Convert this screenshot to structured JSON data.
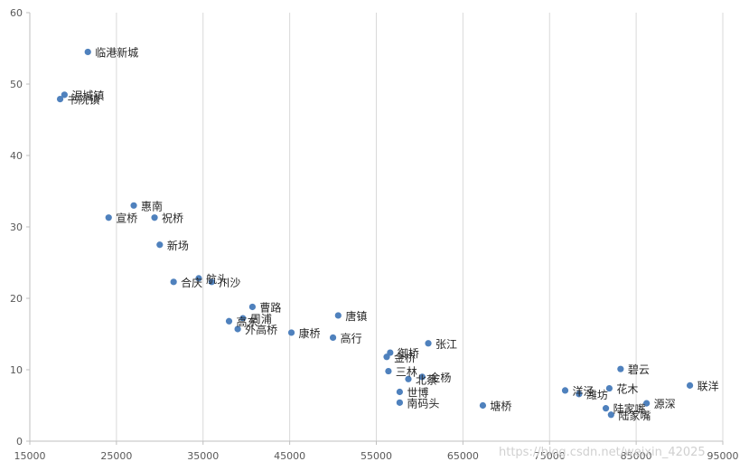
{
  "chart_data": {
    "type": "scatter",
    "title": "",
    "xlabel": "",
    "ylabel": "",
    "xlim": [
      15000,
      95000
    ],
    "ylim": [
      0,
      60
    ],
    "x_ticks": [
      15000,
      25000,
      35000,
      45000,
      55000,
      65000,
      75000,
      85000,
      95000
    ],
    "y_ticks": [
      0,
      10,
      20,
      30,
      40,
      50,
      60
    ],
    "grid": {
      "vertical": true,
      "horizontal": false
    },
    "legend": "none",
    "point_color": "#4f81bd",
    "points": [
      {
        "label": "临港新城",
        "x": 21700,
        "y": 54.5
      },
      {
        "label": "泥城镇",
        "x": 19000,
        "y": 48.5
      },
      {
        "label": "书院镇",
        "x": 18500,
        "y": 47.9
      },
      {
        "label": "惠南",
        "x": 27000,
        "y": 33.0
      },
      {
        "label": "宣桥",
        "x": 24100,
        "y": 31.3
      },
      {
        "label": "祝桥",
        "x": 29400,
        "y": 31.3
      },
      {
        "label": "新场",
        "x": 30000,
        "y": 27.5
      },
      {
        "label": "航头",
        "x": 34500,
        "y": 22.8
      },
      {
        "label": "合庆",
        "x": 31600,
        "y": 22.3
      },
      {
        "label": "川沙",
        "x": 36000,
        "y": 22.3
      },
      {
        "label": "曹路",
        "x": 40700,
        "y": 18.8
      },
      {
        "label": "唐镇",
        "x": 50600,
        "y": 17.6
      },
      {
        "label": "周浦",
        "x": 39600,
        "y": 17.2
      },
      {
        "label": "高东",
        "x": 38000,
        "y": 16.8
      },
      {
        "label": "外高桥",
        "x": 39000,
        "y": 15.7
      },
      {
        "label": "康桥",
        "x": 45200,
        "y": 15.2
      },
      {
        "label": "高行",
        "x": 50000,
        "y": 14.5
      },
      {
        "label": "张江",
        "x": 61000,
        "y": 13.7
      },
      {
        "label": "御桥",
        "x": 56600,
        "y": 12.4
      },
      {
        "label": "金桥",
        "x": 56200,
        "y": 11.8
      },
      {
        "label": "三林",
        "x": 56400,
        "y": 9.8
      },
      {
        "label": "北蔡",
        "x": 58700,
        "y": 8.7
      },
      {
        "label": "金杨",
        "x": 60300,
        "y": 9.0
      },
      {
        "label": "碧云",
        "x": 83200,
        "y": 10.1
      },
      {
        "label": "联洋",
        "x": 91200,
        "y": 7.8
      },
      {
        "label": "花木",
        "x": 81900,
        "y": 7.4
      },
      {
        "label": "洋泾",
        "x": 76800,
        "y": 7.1
      },
      {
        "label": "潍坊",
        "x": 78400,
        "y": 6.6
      },
      {
        "label": "世博",
        "x": 57700,
        "y": 6.9
      },
      {
        "label": "南码头",
        "x": 57700,
        "y": 5.4
      },
      {
        "label": "塘桥",
        "x": 67300,
        "y": 5.0
      },
      {
        "label": "源深",
        "x": 86200,
        "y": 5.3
      },
      {
        "label": "陆家嘴",
        "x": 81500,
        "y": 4.6
      },
      {
        "label": "陆家嘴",
        "x": 82100,
        "y": 3.7
      }
    ]
  },
  "watermark": "https://blog.csdn.net/weixin_42025"
}
